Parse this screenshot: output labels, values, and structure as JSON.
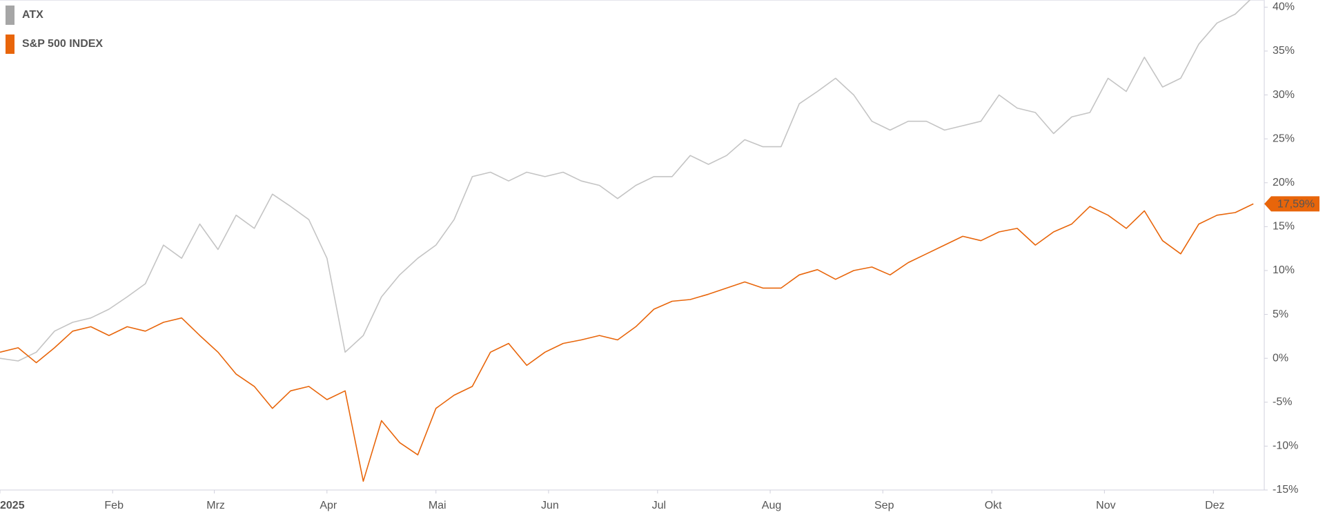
{
  "chart_data": {
    "type": "line",
    "x": [
      1,
      6,
      11,
      16,
      21,
      26,
      31,
      36,
      41,
      46,
      51,
      56,
      61,
      66,
      71,
      76,
      81,
      86,
      91,
      96,
      101,
      106,
      111,
      116,
      121,
      126,
      131,
      136,
      141,
      146,
      151,
      156,
      161,
      166,
      171,
      176,
      181,
      186,
      191,
      196,
      201,
      206,
      211,
      216,
      221,
      226,
      231,
      236,
      241,
      246,
      251,
      256,
      261,
      266,
      271,
      276,
      281,
      286,
      291,
      296,
      301,
      306,
      311,
      316,
      321,
      326,
      331,
      336,
      341,
      346
    ],
    "series": [
      {
        "name": "ATX",
        "color": "#a6a6a6",
        "line_color": "#c4c4c4",
        "values": [
          0,
          -0.3,
          0.7,
          3.1,
          4.1,
          4.6,
          5.6,
          7,
          8.5,
          12.9,
          11.4,
          15.3,
          12.4,
          16.3,
          14.8,
          18.7,
          17.3,
          15.8,
          11.4,
          0.7,
          2.6,
          7,
          9.5,
          11.4,
          12.9,
          15.8,
          20.7,
          21.2,
          20.2,
          21.2,
          20.7,
          21.2,
          20.2,
          19.7,
          18.2,
          19.7,
          20.7,
          20.7,
          23.1,
          22.1,
          23.1,
          24.9,
          24.1,
          24.1,
          29,
          30.4,
          31.9,
          30,
          27,
          26,
          27,
          27,
          26,
          26.5,
          27,
          30,
          28.5,
          28,
          25.6,
          27.5,
          28,
          31.9,
          30.4,
          34.3,
          30.9,
          31.9,
          35.8,
          38.2,
          39.2,
          41.2
        ]
      },
      {
        "name": "S&P 500 INDEX",
        "color": "#e8650a",
        "line_color": "#e8650a",
        "values": [
          0.7,
          1.2,
          -0.5,
          1.2,
          3.1,
          3.6,
          2.6,
          3.6,
          3.1,
          4.1,
          4.6,
          2.6,
          0.7,
          -1.8,
          -3.2,
          -5.7,
          -3.7,
          -3.2,
          -4.7,
          -3.7,
          -14,
          -7.1,
          -9.6,
          -11,
          -5.7,
          -4.2,
          -3.2,
          0.7,
          1.7,
          -0.8,
          0.7,
          1.7,
          2.1,
          2.6,
          2.1,
          3.6,
          5.6,
          6.5,
          6.7,
          7.3,
          8,
          8.7,
          8,
          8,
          9.5,
          10.1,
          9,
          10,
          10.4,
          9.5,
          10.9,
          11.9,
          12.9,
          13.9,
          13.4,
          14.4,
          14.8,
          12.9,
          14.4,
          15.3,
          17.3,
          16.3,
          14.8,
          16.8,
          13.4,
          11.9,
          15.3,
          16.3,
          16.6,
          17.59
        ],
        "value_labels": [
          null,
          null,
          null,
          null,
          null,
          null,
          null,
          null,
          null,
          null,
          null,
          null,
          null,
          null,
          null,
          null,
          null,
          null,
          null,
          null,
          null,
          null,
          null,
          null,
          null,
          null,
          null,
          null,
          null,
          null,
          null,
          null,
          null,
          null,
          null,
          null,
          null,
          null,
          null,
          null,
          null,
          null,
          null,
          null,
          null,
          null,
          null,
          null,
          null,
          null,
          null,
          null,
          null,
          null,
          null,
          null,
          null,
          null,
          null,
          null,
          null,
          null,
          null,
          null,
          null,
          null,
          null,
          null,
          null,
          "17,59%"
        ]
      }
    ],
    "xlim": [
      1,
      349
    ],
    "xticks": [
      {
        "value": 1,
        "label": "2025"
      },
      {
        "value": 32,
        "label": "Feb"
      },
      {
        "value": 60,
        "label": "Mrz"
      },
      {
        "value": 91,
        "label": "Apr"
      },
      {
        "value": 121,
        "label": "Mai"
      },
      {
        "value": 152,
        "label": "Jun"
      },
      {
        "value": 182,
        "label": "Jul"
      },
      {
        "value": 213,
        "label": "Aug"
      },
      {
        "value": 244,
        "label": "Sep"
      },
      {
        "value": 274,
        "label": "Okt"
      },
      {
        "value": 305,
        "label": "Nov"
      },
      {
        "value": 335,
        "label": "Dez"
      }
    ],
    "ylim": [
      -15,
      40.5
    ],
    "yticks": [
      {
        "value": 40,
        "label": "40%"
      },
      {
        "value": 35,
        "label": "35%"
      },
      {
        "value": 30,
        "label": "30%"
      },
      {
        "value": 25,
        "label": "25%"
      },
      {
        "value": 20,
        "label": "20%"
      },
      {
        "value": 15,
        "label": "15%"
      },
      {
        "value": 10,
        "label": "10%"
      },
      {
        "value": 5,
        "label": "5%"
      },
      {
        "value": 0,
        "label": "0%"
      },
      {
        "value": -5,
        "label": "-5%"
      },
      {
        "value": -10,
        "label": "-10%"
      },
      {
        "value": -15,
        "label": "-15%"
      }
    ],
    "grid": false,
    "legend": "top-left"
  }
}
